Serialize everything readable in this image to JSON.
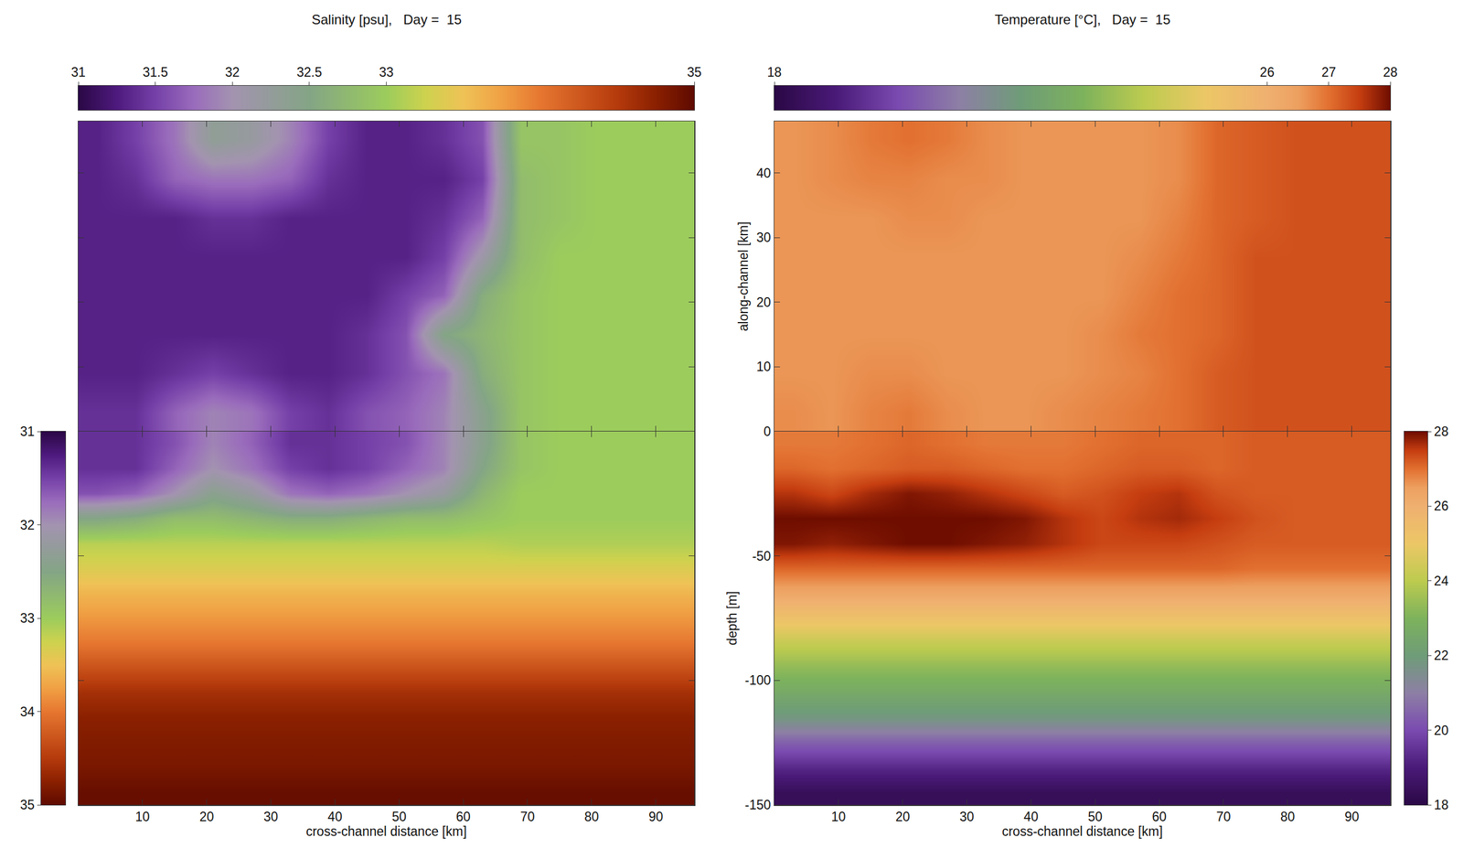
{
  "chart_data": [
    {
      "type": "heatmap",
      "title": "Salinity [psu],   Day =  15",
      "x": [
        3,
        9,
        15,
        21,
        27,
        33,
        39,
        45,
        51,
        57,
        63,
        69,
        75,
        81,
        87,
        93
      ],
      "y": [
        3,
        9,
        15,
        21,
        27,
        33,
        39,
        45
      ],
      "z": [
        [
          31.4,
          31.4,
          31.7,
          31.9,
          31.8,
          31.5,
          31.4,
          31.6,
          31.7,
          31.9,
          32.4,
          32.9,
          33.0,
          33.0,
          33.0,
          33.0
        ],
        [
          31.3,
          31.3,
          31.4,
          31.5,
          31.4,
          31.3,
          31.3,
          31.4,
          31.6,
          31.8,
          32.6,
          32.9,
          33.0,
          33.0,
          33.0,
          33.0
        ],
        [
          31.3,
          31.3,
          31.3,
          31.3,
          31.3,
          31.3,
          31.3,
          31.4,
          31.6,
          32.5,
          32.7,
          32.9,
          33.0,
          33.0,
          33.0,
          33.0
        ],
        [
          31.3,
          31.3,
          31.3,
          31.3,
          31.3,
          31.3,
          31.3,
          31.3,
          31.5,
          31.7,
          32.6,
          32.9,
          33.0,
          33.0,
          33.0,
          33.0
        ],
        [
          31.3,
          31.3,
          31.3,
          31.3,
          31.3,
          31.3,
          31.3,
          31.3,
          31.3,
          31.5,
          32.1,
          32.8,
          33.0,
          33.0,
          33.0,
          33.0
        ],
        [
          31.3,
          31.3,
          31.3,
          31.4,
          31.4,
          31.3,
          31.3,
          31.3,
          31.3,
          31.4,
          31.7,
          32.8,
          32.9,
          33.0,
          33.0,
          33.0
        ],
        [
          31.3,
          31.4,
          31.7,
          31.8,
          31.8,
          31.7,
          31.4,
          31.3,
          31.3,
          31.3,
          31.5,
          32.8,
          32.9,
          33.0,
          33.0,
          33.0
        ],
        [
          31.3,
          31.5,
          31.8,
          32.3,
          32.2,
          31.9,
          31.5,
          31.3,
          31.3,
          31.4,
          31.6,
          32.9,
          32.9,
          33.0,
          33.0,
          33.0
        ]
      ],
      "xlim": [
        0,
        96
      ],
      "ylim": [
        0,
        48
      ],
      "xticks": [
        10,
        20,
        30,
        40,
        50,
        60,
        70,
        80,
        90
      ],
      "yticks": [
        0,
        10,
        20,
        30,
        40
      ],
      "tick_labels": false,
      "colorbar": {
        "range": [
          31,
          35
        ],
        "ticks": [
          31,
          31.5,
          32,
          32.5,
          33,
          35
        ]
      }
    },
    {
      "type": "heatmap",
      "title": "Temperature [°C],   Day =  15",
      "ylabel": "along-channel [km]",
      "x": [
        3,
        9,
        15,
        21,
        27,
        33,
        39,
        45,
        51,
        57,
        63,
        69,
        75,
        81,
        87,
        93
      ],
      "y": [
        3,
        9,
        15,
        21,
        27,
        33,
        39,
        45
      ],
      "z": [
        [
          26.7,
          26.6,
          26.8,
          26.9,
          26.7,
          26.6,
          26.6,
          26.7,
          26.8,
          26.9,
          27.0,
          27.2,
          27.3,
          27.3,
          27.3,
          27.3
        ],
        [
          26.6,
          26.6,
          26.7,
          26.7,
          26.6,
          26.6,
          26.6,
          26.6,
          26.7,
          26.8,
          27.0,
          27.2,
          27.3,
          27.3,
          27.3,
          27.3
        ],
        [
          26.6,
          26.6,
          26.6,
          26.6,
          26.6,
          26.6,
          26.6,
          26.6,
          26.7,
          26.9,
          27.0,
          27.1,
          27.3,
          27.3,
          27.3,
          27.3
        ],
        [
          26.6,
          26.6,
          26.6,
          26.6,
          26.6,
          26.6,
          26.6,
          26.6,
          26.6,
          26.8,
          27.0,
          27.1,
          27.3,
          27.3,
          27.3,
          27.3
        ],
        [
          26.6,
          26.6,
          26.6,
          26.6,
          26.6,
          26.6,
          26.6,
          26.6,
          26.6,
          26.7,
          26.9,
          27.1,
          27.3,
          27.3,
          27.3,
          27.3
        ],
        [
          26.6,
          26.6,
          26.6,
          26.7,
          26.7,
          26.6,
          26.6,
          26.6,
          26.6,
          26.6,
          26.8,
          27.1,
          27.2,
          27.3,
          27.3,
          27.3
        ],
        [
          26.6,
          26.7,
          26.8,
          26.8,
          26.7,
          26.7,
          26.6,
          26.6,
          26.6,
          26.6,
          26.7,
          27.1,
          27.2,
          27.3,
          27.3,
          27.3
        ],
        [
          26.6,
          26.7,
          26.9,
          27.0,
          26.9,
          26.7,
          26.6,
          26.6,
          26.6,
          26.6,
          26.7,
          27.1,
          27.2,
          27.3,
          27.3,
          27.3
        ]
      ],
      "xlim": [
        0,
        96
      ],
      "ylim": [
        0,
        48
      ],
      "xticks": [
        10,
        20,
        30,
        40,
        50,
        60,
        70,
        80,
        90
      ],
      "yticks": [
        0,
        10,
        20,
        30,
        40
      ],
      "tick_labels": "y",
      "colorbar": {
        "range": [
          18,
          28
        ],
        "ticks": [
          18,
          26,
          27,
          28
        ]
      }
    },
    {
      "type": "heatmap",
      "xlabel": "cross-channel distance [km]",
      "x": [
        3,
        9,
        15,
        21,
        27,
        33,
        39,
        45,
        51,
        57,
        63,
        69,
        75,
        81,
        87,
        93
      ],
      "y": [
        -145,
        -135,
        -125,
        -115,
        -105,
        -95,
        -85,
        -75,
        -65,
        -55,
        -45,
        -35,
        -25,
        -15,
        -5
      ],
      "z": [
        [
          34.95,
          34.95,
          34.95,
          34.95,
          34.95,
          34.95,
          34.95,
          34.95,
          34.95,
          34.95,
          34.95,
          34.95,
          34.95,
          34.95,
          34.95,
          34.95
        ],
        [
          34.85,
          34.85,
          34.85,
          34.85,
          34.85,
          34.85,
          34.85,
          34.85,
          34.85,
          34.85,
          34.85,
          34.85,
          34.85,
          34.85,
          34.85,
          34.85
        ],
        [
          34.8,
          34.8,
          34.8,
          34.8,
          34.8,
          34.8,
          34.8,
          34.8,
          34.8,
          34.8,
          34.8,
          34.8,
          34.8,
          34.8,
          34.8,
          34.8
        ],
        [
          34.75,
          34.75,
          34.75,
          34.75,
          34.75,
          34.75,
          34.75,
          34.75,
          34.75,
          34.75,
          34.75,
          34.75,
          34.75,
          34.75,
          34.75,
          34.75
        ],
        [
          34.6,
          34.6,
          34.6,
          34.6,
          34.6,
          34.6,
          34.6,
          34.6,
          34.6,
          34.6,
          34.6,
          34.6,
          34.6,
          34.6,
          34.6,
          34.6
        ],
        [
          34.3,
          34.3,
          34.3,
          34.3,
          34.3,
          34.3,
          34.3,
          34.3,
          34.3,
          34.3,
          34.3,
          34.3,
          34.3,
          34.3,
          34.3,
          34.3
        ],
        [
          34.0,
          34.0,
          34.0,
          34.0,
          34.0,
          34.0,
          34.0,
          34.0,
          34.0,
          34.0,
          34.0,
          34.0,
          34.0,
          34.0,
          34.0,
          34.0
        ],
        [
          33.8,
          33.8,
          33.8,
          33.8,
          33.8,
          33.8,
          33.8,
          33.8,
          33.8,
          33.8,
          33.8,
          33.8,
          33.8,
          33.8,
          33.8,
          33.8
        ],
        [
          33.6,
          33.6,
          33.6,
          33.6,
          33.6,
          33.6,
          33.6,
          33.6,
          33.6,
          33.6,
          33.6,
          33.6,
          33.6,
          33.6,
          33.6,
          33.6
        ],
        [
          33.35,
          33.35,
          33.35,
          33.35,
          33.35,
          33.35,
          33.35,
          33.35,
          33.35,
          33.35,
          33.35,
          33.35,
          33.35,
          33.35,
          33.35,
          33.35
        ],
        [
          33.15,
          33.15,
          33.15,
          33.15,
          33.15,
          33.15,
          33.15,
          33.15,
          33.15,
          33.15,
          33.15,
          33.1,
          33.1,
          33.1,
          33.1,
          33.1
        ],
        [
          32.5,
          32.6,
          32.8,
          32.8,
          32.7,
          32.6,
          32.6,
          32.7,
          32.8,
          32.8,
          32.9,
          33.0,
          33.0,
          33.0,
          33.0,
          33.0
        ],
        [
          31.6,
          31.7,
          32.0,
          32.4,
          32.2,
          31.8,
          31.7,
          31.8,
          32.0,
          32.2,
          32.7,
          33.0,
          33.0,
          33.0,
          33.0,
          33.0
        ],
        [
          31.4,
          31.4,
          31.7,
          32.0,
          31.8,
          31.5,
          31.4,
          31.5,
          31.7,
          31.9,
          32.5,
          32.9,
          33.0,
          33.0,
          33.0,
          33.0
        ],
        [
          31.4,
          31.4,
          31.6,
          31.9,
          31.7,
          31.4,
          31.4,
          31.5,
          31.6,
          31.9,
          32.4,
          32.9,
          33.0,
          33.0,
          33.0,
          33.0
        ]
      ],
      "xlim": [
        0,
        96
      ],
      "ylim": [
        -150,
        0
      ],
      "xticks": [
        10,
        20,
        30,
        40,
        50,
        60,
        70,
        80,
        90
      ],
      "yticks": [
        -150,
        -100,
        -50
      ],
      "tick_labels": "x",
      "colorbar": {
        "range": [
          31,
          35
        ],
        "ticks": [
          31,
          32,
          33,
          34,
          35
        ]
      }
    },
    {
      "type": "heatmap",
      "xlabel": "cross-channel distance [km]",
      "ylabel": "depth [m]",
      "x": [
        3,
        9,
        15,
        21,
        27,
        33,
        39,
        45,
        51,
        57,
        63,
        69,
        75,
        81,
        87,
        93
      ],
      "y": [
        -145,
        -135,
        -125,
        -115,
        -105,
        -95,
        -85,
        -75,
        -65,
        -55,
        -45,
        -35,
        -25,
        -15,
        -5
      ],
      "z": [
        [
          18.4,
          18.4,
          18.4,
          18.4,
          18.4,
          18.4,
          18.4,
          18.4,
          18.4,
          18.4,
          18.4,
          18.4,
          18.4,
          18.4,
          18.4,
          18.4
        ],
        [
          19.3,
          19.3,
          19.3,
          19.3,
          19.3,
          19.3,
          19.3,
          19.3,
          19.3,
          19.3,
          19.3,
          19.3,
          19.3,
          19.3,
          19.3,
          19.3
        ],
        [
          20.4,
          20.4,
          20.4,
          20.4,
          20.4,
          20.4,
          20.4,
          20.4,
          20.4,
          20.4,
          20.4,
          20.4,
          20.4,
          20.4,
          20.4,
          20.4
        ],
        [
          21.8,
          21.8,
          21.8,
          21.8,
          21.8,
          21.8,
          21.8,
          21.8,
          21.8,
          21.8,
          21.8,
          21.8,
          21.8,
          21.8,
          21.8,
          21.8
        ],
        [
          22.6,
          22.6,
          22.6,
          22.6,
          22.6,
          22.6,
          22.6,
          22.6,
          22.6,
          22.6,
          22.6,
          22.6,
          22.6,
          22.6,
          22.6,
          22.6
        ],
        [
          23.3,
          23.3,
          23.3,
          23.3,
          23.3,
          23.3,
          23.3,
          23.3,
          23.3,
          23.3,
          23.3,
          23.3,
          23.3,
          23.3,
          23.3,
          23.3
        ],
        [
          24.2,
          24.2,
          24.2,
          24.2,
          24.2,
          24.2,
          24.2,
          24.2,
          24.2,
          24.2,
          24.2,
          24.2,
          24.2,
          24.2,
          24.2,
          24.2
        ],
        [
          25.3,
          25.3,
          25.3,
          25.3,
          25.3,
          25.3,
          25.3,
          25.3,
          25.3,
          25.3,
          25.3,
          25.3,
          25.3,
          25.3,
          25.3,
          25.3
        ],
        [
          26.3,
          26.3,
          26.3,
          26.3,
          26.3,
          26.3,
          26.3,
          26.3,
          26.3,
          26.3,
          26.3,
          26.3,
          26.3,
          26.3,
          26.3,
          26.3
        ],
        [
          27.1,
          27.1,
          27.1,
          27.1,
          27.1,
          27.1,
          27.1,
          27.1,
          27.1,
          27.1,
          27.1,
          27.1,
          27.0,
          27.0,
          27.0,
          27.0
        ],
        [
          27.9,
          27.8,
          27.9,
          28.0,
          28.0,
          27.9,
          27.8,
          27.6,
          27.4,
          27.4,
          27.4,
          27.3,
          27.2,
          27.2,
          27.2,
          27.2
        ],
        [
          28.0,
          28.0,
          28.0,
          28.0,
          28.0,
          28.0,
          27.9,
          27.6,
          27.4,
          27.6,
          27.7,
          27.5,
          27.3,
          27.2,
          27.2,
          27.2
        ],
        [
          27.6,
          27.4,
          27.7,
          27.9,
          27.8,
          27.6,
          27.4,
          27.2,
          27.3,
          27.5,
          27.6,
          27.3,
          27.2,
          27.2,
          27.2,
          27.2
        ],
        [
          27.1,
          27.0,
          27.1,
          27.2,
          27.2,
          27.1,
          27.0,
          27.0,
          27.1,
          27.2,
          27.2,
          27.1,
          27.2,
          27.2,
          27.2,
          27.2
        ],
        [
          26.9,
          26.9,
          27.0,
          27.1,
          27.0,
          26.9,
          26.9,
          26.9,
          27.0,
          27.1,
          27.1,
          27.1,
          27.2,
          27.2,
          27.2,
          27.2
        ]
      ],
      "xlim": [
        0,
        96
      ],
      "ylim": [
        -150,
        0
      ],
      "xticks": [
        10,
        20,
        30,
        40,
        50,
        60,
        70,
        80,
        90
      ],
      "yticks": [
        -150,
        -100,
        -50
      ],
      "tick_labels": true,
      "colorbar": {
        "range": [
          18,
          28
        ],
        "ticks": [
          18,
          20,
          22,
          24,
          26,
          28
        ]
      }
    }
  ]
}
